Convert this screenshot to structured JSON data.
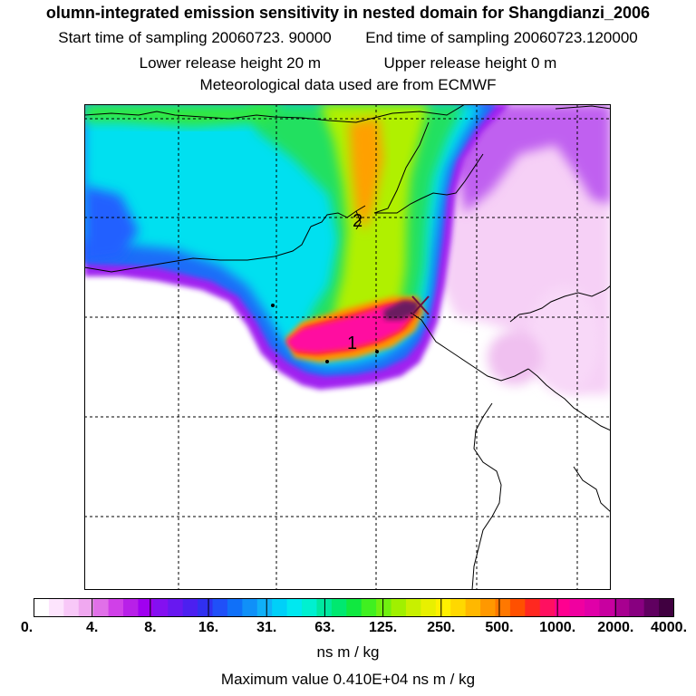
{
  "header": {
    "title": "olumn-integrated emission sensitivity in nested domain for Shangdianzi_2006",
    "start_label": "Start time of sampling 20060723. 90000",
    "end_label": "End time of sampling 20060723.120000",
    "lower_label": "Lower release height   20 m",
    "upper_label": "Upper release height    0 m",
    "met_label": "Meteorological data used are from ECMWF"
  },
  "map": {
    "annotation_1": "1",
    "annotation_2": "2",
    "release_marker": "x-icon",
    "colors": {
      "pink_pale": "#f9d9f9",
      "violet": "#a000f0",
      "blue": "#2060ff",
      "cyan": "#00e0f0",
      "green": "#20e040",
      "yellow_green": "#c0f000",
      "orange": "#ffa000",
      "magenta": "#ff10a0",
      "dark_purple": "#501040"
    }
  },
  "colorbar": {
    "ticks": [
      "0.",
      "4.",
      "8.",
      "16.",
      "31.",
      "63.",
      "125.",
      "250.",
      "500.",
      "1000.",
      "2000.",
      "4000."
    ],
    "colors": [
      "#ffffff",
      "#fde4fd",
      "#f8c8f8",
      "#f0a8f0",
      "#e070e8",
      "#d040e8",
      "#b820e8",
      "#a000f0",
      "#8410f0",
      "#6818f0",
      "#4c20f0",
      "#3030f0",
      "#2050f8",
      "#1070f8",
      "#1090f8",
      "#10b0f8",
      "#00d0f8",
      "#00e8f0",
      "#00f0d0",
      "#00e8a0",
      "#00e870",
      "#10e840",
      "#40f020",
      "#70f010",
      "#a0f000",
      "#c8f000",
      "#e8f000",
      "#fff000",
      "#ffd800",
      "#ffb800",
      "#ff9800",
      "#ff7800",
      "#ff5000",
      "#ff2820",
      "#ff1060",
      "#ff0090",
      "#f000a0",
      "#e000a8",
      "#c800a0",
      "#a80090",
      "#880080",
      "#600060",
      "#400040"
    ],
    "unit": "ns m / kg",
    "max_value_label": "Maximum value  0.410E+04 ns m / kg"
  }
}
